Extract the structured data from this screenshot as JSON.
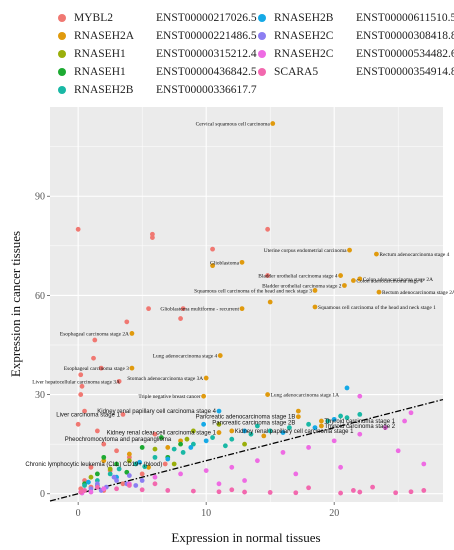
{
  "legend": [
    {
      "gene": "MYBL2",
      "transcript": "ENST00000217026.5",
      "color": "#F07872"
    },
    {
      "gene": "RNASEH2A",
      "transcript": "ENST00000221486.5",
      "color": "#E09A0D"
    },
    {
      "gene": "RNASEH1",
      "transcript": "ENST00000315212.4",
      "color": "#9AAF0B"
    },
    {
      "gene": "RNASEH1",
      "transcript": "ENST00000436842.5",
      "color": "#1DAA32"
    },
    {
      "gene": "RNASEH2B",
      "transcript": "ENST00000336617.7",
      "color": "#19B8A5"
    },
    {
      "gene": "RNASEH2B",
      "transcript": "ENST00000611510.5",
      "color": "#15A9E6"
    },
    {
      "gene": "RNASEH2C",
      "transcript": "ENST00000308418.8",
      "color": "#8C7EF2"
    },
    {
      "gene": "RNASEH2C",
      "transcript": "ENST00000534482.6",
      "color": "#EE6BE3"
    },
    {
      "gene": "SCARA5",
      "transcript": "ENST00000354914.8",
      "color": "#F268AE"
    }
  ],
  "chart_data": {
    "type": "scatter",
    "xlabel": "Expression in normal tissues",
    "ylabel": "Expression in cancer tissues",
    "xlim": [
      -2.2,
      28.5
    ],
    "ylim": [
      -2.5,
      117
    ],
    "xticks": [
      0,
      10,
      20
    ],
    "yticks": [
      0,
      30,
      60,
      90
    ],
    "grid": true,
    "reference_line": {
      "slope": 1.0,
      "intercept": 0,
      "style": "dash-dot"
    },
    "series": [
      {
        "name": "MYBL2 ENST00000217026.5",
        "color": "#F07872",
        "points": [
          [
            0,
            80
          ],
          [
            5.8,
            78.5
          ],
          [
            5.8,
            77.5
          ],
          [
            14.8,
            80
          ],
          [
            10.5,
            74
          ],
          [
            14.8,
            66
          ],
          [
            5.5,
            56
          ],
          [
            8.2,
            56
          ],
          [
            8,
            53
          ],
          [
            3.8,
            52
          ],
          [
            1.3,
            46.5
          ],
          [
            1.2,
            41
          ],
          [
            1.8,
            38
          ],
          [
            0.2,
            36
          ],
          [
            3.2,
            34
          ],
          [
            0.3,
            32.5
          ],
          [
            0.2,
            30
          ],
          [
            0.5,
            25
          ],
          [
            3.5,
            24
          ],
          [
            0,
            21
          ],
          [
            1.5,
            19
          ],
          [
            6,
            18
          ],
          [
            2,
            15
          ],
          [
            3,
            13
          ],
          [
            4,
            11
          ],
          [
            1,
            8
          ],
          [
            2.5,
            7
          ],
          [
            5,
            6
          ],
          [
            0.5,
            4
          ],
          [
            3.5,
            3
          ],
          [
            1,
            2
          ],
          [
            0.2,
            1.5
          ],
          [
            2,
            1
          ],
          [
            6.8,
            9
          ]
        ]
      },
      {
        "name": "RNASEH2A ENST00000221486.5",
        "color": "#E09A0D",
        "points": [
          [
            15.2,
            112
          ],
          [
            21.2,
            73.7
          ],
          [
            23.3,
            72.5
          ],
          [
            12.8,
            70
          ],
          [
            10.5,
            69
          ],
          [
            20.5,
            66
          ],
          [
            22,
            65
          ],
          [
            21.5,
            64.5
          ],
          [
            20.8,
            63
          ],
          [
            18.5,
            61.5
          ],
          [
            23.5,
            61
          ],
          [
            15,
            58
          ],
          [
            18.5,
            56.5
          ],
          [
            12.8,
            56
          ],
          [
            4.2,
            48.5
          ],
          [
            11.1,
            41.8
          ],
          [
            4.2,
            38
          ],
          [
            10,
            35
          ],
          [
            14.8,
            30
          ],
          [
            9.8,
            29.5
          ],
          [
            17.2,
            25
          ],
          [
            17.2,
            23.3
          ],
          [
            19,
            22
          ],
          [
            19,
            20.5
          ],
          [
            12,
            19
          ],
          [
            11,
            18.5
          ],
          [
            14.5,
            17.5
          ],
          [
            7,
            14
          ],
          [
            4,
            12
          ],
          [
            2,
            10
          ],
          [
            8,
            16
          ],
          [
            5.5,
            8
          ]
        ]
      },
      {
        "name": "RNASEH1 ENST00000315212.4",
        "color": "#9AAF0B",
        "points": [
          [
            11,
            21
          ],
          [
            8.5,
            16.5
          ],
          [
            6,
            13.5
          ],
          [
            4,
            10
          ],
          [
            2.5,
            7.5
          ],
          [
            1,
            5
          ],
          [
            9,
            19
          ],
          [
            13,
            15
          ],
          [
            7.5,
            9
          ]
        ]
      },
      {
        "name": "RNASEH1 ENST00000436842.5",
        "color": "#1DAA32",
        "points": [
          [
            2,
            11
          ],
          [
            3,
            9
          ],
          [
            5,
            14
          ],
          [
            6.5,
            17
          ],
          [
            8,
            15
          ],
          [
            1.5,
            6
          ],
          [
            0.5,
            3
          ],
          [
            3.8,
            6.5
          ],
          [
            7,
            11
          ]
        ]
      },
      {
        "name": "RNASEH2B ENST00000336617.7",
        "color": "#19B8A5",
        "points": [
          [
            0.5,
            2.5
          ],
          [
            1.5,
            4
          ],
          [
            2.5,
            6
          ],
          [
            3.2,
            7.5
          ],
          [
            4.5,
            9
          ],
          [
            6,
            11
          ],
          [
            7.5,
            13.5
          ],
          [
            9,
            15
          ],
          [
            10.5,
            17
          ],
          [
            12,
            16.5
          ],
          [
            13.5,
            18
          ],
          [
            15,
            19
          ],
          [
            16.5,
            20
          ],
          [
            18,
            21
          ],
          [
            19.5,
            22
          ],
          [
            21,
            23
          ],
          [
            22,
            24
          ],
          [
            20.5,
            23.5
          ],
          [
            14,
            20.5
          ],
          [
            11.5,
            14.5
          ],
          [
            8.2,
            12.5
          ],
          [
            5.2,
            8.2
          ]
        ]
      },
      {
        "name": "RNASEH2B ENST00000611510.5",
        "color": "#15A9E6",
        "points": [
          [
            21,
            32
          ],
          [
            11,
            25
          ],
          [
            9.8,
            21
          ],
          [
            8.8,
            14
          ],
          [
            7,
            10.5
          ],
          [
            4.8,
            9.5
          ],
          [
            3,
            5
          ],
          [
            1.5,
            2.5
          ],
          [
            0.8,
            3.5
          ],
          [
            16,
            18.5
          ],
          [
            18.5,
            20
          ],
          [
            20,
            22.5
          ],
          [
            13,
            19
          ],
          [
            10,
            16
          ]
        ]
      },
      {
        "name": "RNASEH2C ENST00000308418.8",
        "color": "#8C7EF2",
        "points": [
          [
            1.5,
            3
          ],
          [
            2.2,
            2
          ],
          [
            3,
            4
          ],
          [
            3.8,
            3
          ],
          [
            4.5,
            2.5
          ],
          [
            2.8,
            5
          ],
          [
            1.8,
            1
          ],
          [
            1,
            1.5
          ],
          [
            4,
            5.5
          ],
          [
            5,
            4
          ]
        ]
      },
      {
        "name": "RNASEH2C ENST00000534482.6",
        "color": "#EE6BE3",
        "points": [
          [
            22,
            29.5
          ],
          [
            26,
            24.5
          ],
          [
            25.5,
            22
          ],
          [
            24,
            20
          ],
          [
            22,
            18
          ],
          [
            20,
            16
          ],
          [
            18,
            14
          ],
          [
            16,
            12.5
          ],
          [
            14,
            10
          ],
          [
            12,
            8
          ],
          [
            10,
            7
          ],
          [
            8,
            6
          ],
          [
            6,
            5
          ],
          [
            4,
            3
          ],
          [
            2,
            1.5
          ],
          [
            1,
            0.5
          ],
          [
            0.3,
            0.2
          ],
          [
            25,
            13
          ],
          [
            27,
            9
          ],
          [
            20.5,
            8
          ],
          [
            17,
            6
          ],
          [
            13,
            4
          ],
          [
            11,
            3
          ]
        ]
      },
      {
        "name": "SCARA5 ENST00000354914.8",
        "color": "#F268AE",
        "points": [
          [
            21.5,
            1
          ],
          [
            22,
            0.5
          ],
          [
            24.8,
            0.3
          ],
          [
            26,
            0.6
          ],
          [
            27,
            1
          ],
          [
            20.5,
            0.2
          ],
          [
            17,
            0.3
          ],
          [
            15,
            0.4
          ],
          [
            13,
            0.5
          ],
          [
            11,
            0.6
          ],
          [
            9,
            0.8
          ],
          [
            7,
            1
          ],
          [
            5,
            1.2
          ],
          [
            3,
            1.5
          ],
          [
            1.5,
            2
          ],
          [
            0.5,
            1
          ],
          [
            0.2,
            0.5
          ],
          [
            4,
            2.5
          ],
          [
            6,
            3
          ],
          [
            12,
            1.2
          ],
          [
            18,
            1.8
          ],
          [
            23,
            2
          ]
        ]
      }
    ],
    "annotations": [
      {
        "text": "Cervical squamous cell carcinoma",
        "x": 15.2,
        "y": 112,
        "anchor": "end",
        "font": "serif"
      },
      {
        "text": "Uterine corpus endometrial carcinoma",
        "x": 21.2,
        "y": 73.7,
        "anchor": "end",
        "font": "serif"
      },
      {
        "text": "Rectum adenocarcinoma stage 4",
        "x": 23.3,
        "y": 72.5,
        "anchor": "start",
        "font": "serif"
      },
      {
        "text": "Glioblastoma",
        "x": 12.8,
        "y": 70,
        "anchor": "end",
        "font": "serif"
      },
      {
        "text": "Bladder urothelial carcinoma stage 4",
        "x": 20.5,
        "y": 66,
        "anchor": "end",
        "font": "serif"
      },
      {
        "text": "Colon adenocarcinoma stage 2A",
        "x": 22,
        "y": 65,
        "anchor": "start",
        "font": "serif"
      },
      {
        "text": "Bladder urothelial carcinoma stage 2",
        "x": 20.8,
        "y": 63,
        "anchor": "end",
        "font": "serif"
      },
      {
        "text": "Colon adenocarcinoma stage 1",
        "x": 21.5,
        "y": 64.5,
        "anchor": "start",
        "font": "serif"
      },
      {
        "text": "Squamous cell carcinoma of the head and neck stage 3",
        "x": 18.5,
        "y": 61.5,
        "anchor": "end",
        "font": "serif"
      },
      {
        "text": "Rectum adenocarcinoma stage 2A",
        "x": 23.5,
        "y": 61,
        "anchor": "start",
        "font": "serif"
      },
      {
        "text": "Squamous cell carcinoma of the head and neck stage 1",
        "x": 18.5,
        "y": 56.5,
        "anchor": "start",
        "font": "serif"
      },
      {
        "text": "Glioblastoma multiforme - recurrent",
        "x": 12.8,
        "y": 56,
        "anchor": "end",
        "font": "serif"
      },
      {
        "text": "Esophageal carcinoma stage 2A",
        "x": 4.2,
        "y": 48.5,
        "anchor": "end",
        "font": "serif"
      },
      {
        "text": "Lung adenocarcinoma stage 4",
        "x": 11.1,
        "y": 41.8,
        "anchor": "end",
        "font": "serif"
      },
      {
        "text": "Esophageal carcinoma stage 3",
        "x": 4.2,
        "y": 38,
        "anchor": "end",
        "font": "serif"
      },
      {
        "text": "Stomach adenocarcinoma stage 3A",
        "x": 10,
        "y": 35,
        "anchor": "end",
        "font": "serif"
      },
      {
        "text": "Liver hepatocellular carcinoma stage 3A",
        "x": 3.5,
        "y": 34,
        "anchor": "end",
        "font": "serif"
      },
      {
        "text": "Lung adenocarcinoma stage 1A",
        "x": 14.8,
        "y": 30,
        "anchor": "start",
        "font": "serif"
      },
      {
        "text": "Triple negative breast cancer",
        "x": 9.8,
        "y": 29.5,
        "anchor": "end",
        "font": "serif"
      },
      {
        "text": "Kidney renal papillary cell carcinoma stage 4",
        "x": 11,
        "y": 25,
        "anchor": "end",
        "font": "sans"
      },
      {
        "text": "Pancreatic adenocarcinoma stage 1B",
        "x": 17.2,
        "y": 23.3,
        "anchor": "end",
        "font": "sans"
      },
      {
        "text": "Pancreatic carcinoma stage 2B",
        "x": 17.2,
        "y": 21.5,
        "anchor": "end",
        "font": "sans"
      },
      {
        "text": "Thyroid carcinoma stage 1",
        "x": 19,
        "y": 22,
        "anchor": "start",
        "font": "sans"
      },
      {
        "text": "Thyroid carcinoma stage 2",
        "x": 19,
        "y": 20.5,
        "anchor": "start",
        "font": "sans"
      },
      {
        "text": "Liver carcinoma stage 1",
        "x": 3.5,
        "y": 24,
        "anchor": "end",
        "font": "sans"
      },
      {
        "text": "Kidney renal clear cell carcinoma stage 1",
        "x": 11,
        "y": 18.5,
        "anchor": "end",
        "font": "sans"
      },
      {
        "text": "Kidney renal papillary cell carcinoma stage 1",
        "x": 12,
        "y": 19,
        "anchor": "start",
        "font": "sans"
      },
      {
        "text": "Pheochromocytoma and paraganglioma",
        "x": 7.5,
        "y": 16.5,
        "anchor": "end",
        "font": "sans"
      },
      {
        "text": "Chronic lymphocytic leukemia (CLL) CD19+ (blood)",
        "x": 6.8,
        "y": 9,
        "anchor": "end",
        "font": "sans"
      }
    ]
  }
}
